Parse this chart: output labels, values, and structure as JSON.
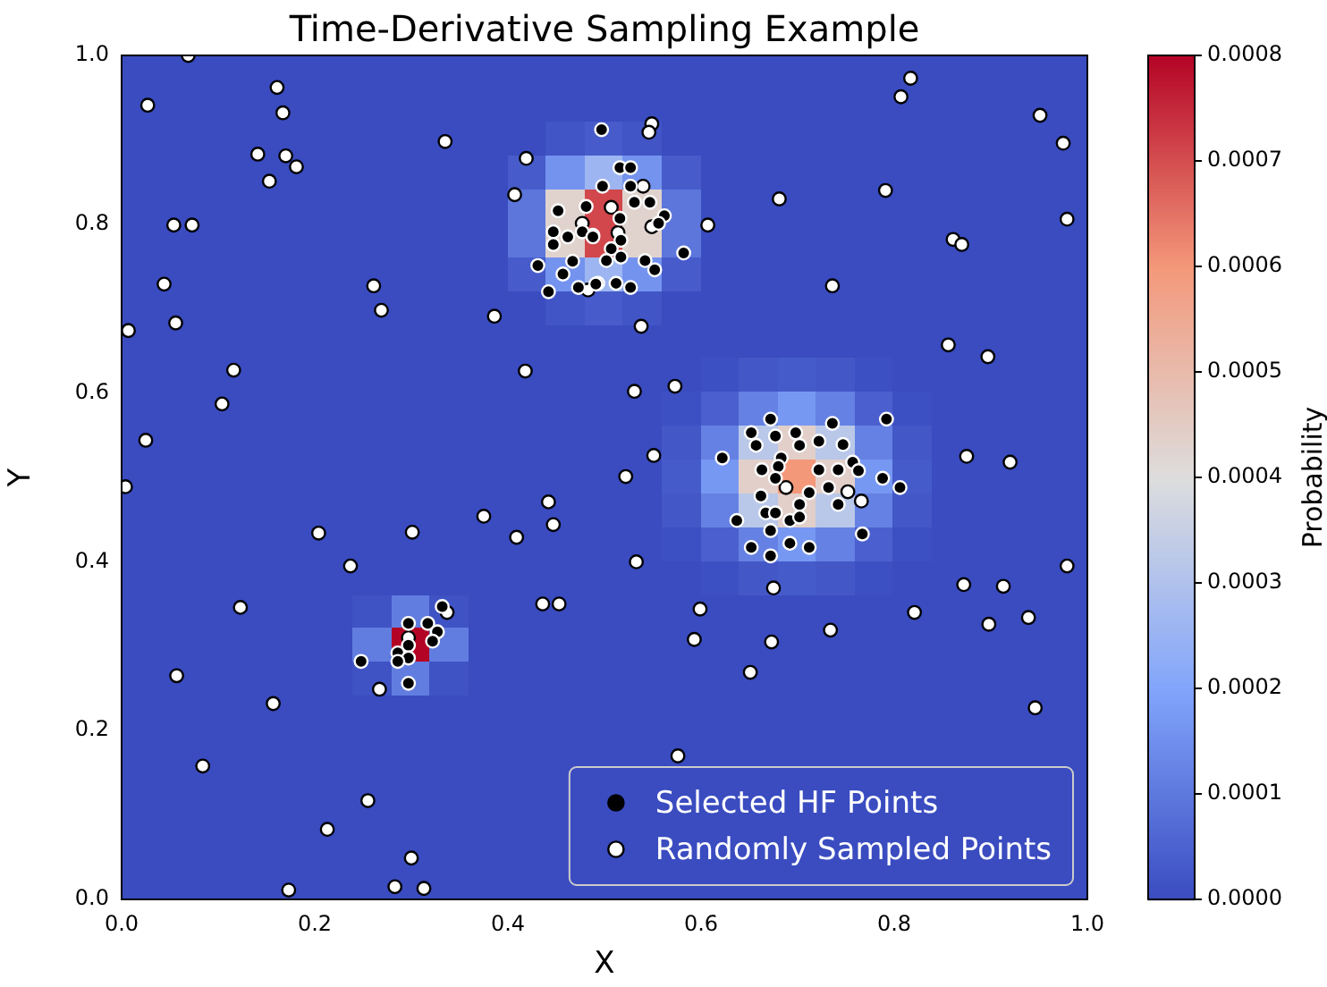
{
  "chart_data": {
    "type": "heatmap",
    "title": "Time-Derivative Sampling Example",
    "xlabel": "X",
    "ylabel": "Y",
    "clabel": "Probability",
    "x": [
      0.02,
      0.06,
      0.1,
      0.14,
      0.18,
      0.22,
      0.26,
      0.3,
      0.34,
      0.38,
      0.42,
      0.46,
      0.5,
      0.54,
      0.58,
      0.62,
      0.66,
      0.7,
      0.74,
      0.78,
      0.82,
      0.86,
      0.9,
      0.94,
      0.98
    ],
    "cells": [
      [
        0,
        0,
        0,
        0,
        0,
        0,
        0,
        0,
        0,
        0,
        0,
        0,
        0,
        0,
        0,
        0,
        0,
        0,
        0,
        0,
        0,
        0,
        0,
        0,
        0
      ],
      [
        0,
        0,
        0,
        0,
        0,
        0,
        0,
        0,
        0,
        0,
        0,
        0,
        0,
        0,
        0,
        0,
        0,
        0,
        0,
        0,
        0,
        0,
        0,
        0,
        0
      ],
      [
        0,
        0,
        0,
        0,
        0,
        0,
        0,
        0,
        0,
        0,
        0,
        2e-05,
        3.5e-05,
        2e-05,
        0,
        0,
        0,
        0,
        0,
        0,
        0,
        0,
        0,
        0,
        0
      ],
      [
        0,
        0,
        0,
        0,
        0,
        0,
        0,
        0,
        0,
        0,
        3.5e-05,
        0.00016,
        0.00026,
        0.00016,
        3.5e-05,
        0,
        0,
        0,
        0,
        0,
        0,
        0,
        0,
        0,
        0
      ],
      [
        0,
        0,
        0,
        0,
        0,
        0,
        0,
        0,
        0,
        0,
        9.5e-05,
        0.00043,
        0.00071,
        0.00043,
        9.5e-05,
        0,
        0,
        0,
        0,
        0,
        0,
        0,
        0,
        0,
        0
      ],
      [
        0,
        0,
        0,
        0,
        0,
        0,
        0,
        0,
        0,
        0,
        9.5e-05,
        0.00043,
        0.00071,
        0.00043,
        9.5e-05,
        0,
        0,
        0,
        0,
        0,
        0,
        0,
        0,
        0,
        0
      ],
      [
        0,
        0,
        0,
        0,
        0,
        0,
        0,
        0,
        0,
        0,
        3.5e-05,
        0.00016,
        0.00026,
        0.00016,
        3.5e-05,
        0,
        0,
        0,
        0,
        0,
        0,
        0,
        0,
        0,
        0
      ],
      [
        0,
        0,
        0,
        0,
        0,
        0,
        0,
        0,
        0,
        0,
        0,
        2e-05,
        3.5e-05,
        2e-05,
        0,
        0,
        0,
        0,
        0,
        0,
        0,
        0,
        0,
        0,
        0
      ],
      [
        0,
        0,
        0,
        0,
        0,
        0,
        0,
        0,
        0,
        0,
        0,
        0,
        0,
        0,
        0,
        0,
        0,
        0,
        0,
        0,
        0,
        0,
        0,
        0,
        0
      ],
      [
        0,
        0,
        0,
        0,
        0,
        0,
        0,
        0,
        0,
        0,
        0,
        0,
        0,
        0,
        0,
        9e-06,
        2.5e-05,
        3.4e-05,
        2.5e-05,
        9e-06,
        0,
        0,
        0,
        0,
        0
      ],
      [
        0,
        0,
        0,
        0,
        0,
        0,
        0,
        0,
        0,
        0,
        0,
        0,
        0,
        0,
        9e-06,
        4.6e-05,
        0.00012,
        0.00017,
        0.00012,
        4.6e-05,
        9e-06,
        0,
        0,
        0,
        0
      ],
      [
        0,
        0,
        0,
        0,
        0,
        0,
        0,
        0,
        0,
        0,
        0,
        0,
        0,
        0,
        2.5e-05,
        0.00012,
        0.00032,
        0.00044,
        0.00032,
        0.00012,
        2.5e-05,
        0,
        0,
        0,
        0
      ],
      [
        0,
        0,
        0,
        0,
        0,
        0,
        0,
        0,
        0,
        0,
        0,
        0,
        0,
        0,
        3.4e-05,
        0.00017,
        0.00044,
        0.0006,
        0.00044,
        0.00017,
        3.4e-05,
        0,
        0,
        0,
        0
      ],
      [
        0,
        0,
        0,
        0,
        0,
        0,
        0,
        0,
        0,
        0,
        0,
        0,
        0,
        0,
        2.5e-05,
        0.00012,
        0.00032,
        0.00044,
        0.00032,
        0.00012,
        2.5e-05,
        0,
        0,
        0,
        0
      ],
      [
        0,
        0,
        0,
        0,
        0,
        0,
        0,
        0,
        0,
        0,
        0,
        0,
        0,
        0,
        9e-06,
        4.6e-05,
        0.00012,
        0.00017,
        0.00012,
        4.6e-05,
        9e-06,
        0,
        0,
        0,
        0
      ],
      [
        0,
        0,
        0,
        0,
        0,
        0,
        0,
        0,
        0,
        0,
        0,
        0,
        0,
        0,
        0,
        9e-06,
        2.5e-05,
        3.4e-05,
        2.5e-05,
        9e-06,
        0,
        0,
        0,
        0,
        0
      ],
      [
        0,
        0,
        0,
        0,
        0,
        0,
        1.5e-05,
        0.00011,
        1.5e-05,
        0,
        0,
        0,
        0,
        0,
        0,
        0,
        0,
        0,
        0,
        0,
        0,
        0,
        0,
        0,
        0
      ],
      [
        0,
        0,
        0,
        0,
        0,
        0,
        0.00011,
        0.0008,
        0.00011,
        0,
        0,
        0,
        0,
        0,
        0,
        0,
        0,
        0,
        0,
        0,
        0,
        0,
        0,
        0,
        0
      ],
      [
        0,
        0,
        0,
        0,
        0,
        0,
        1.5e-05,
        0.00011,
        1.5e-05,
        0,
        0,
        0,
        0,
        0,
        0,
        0,
        0,
        0,
        0,
        0,
        0,
        0,
        0,
        0,
        0
      ],
      [
        0,
        0,
        0,
        0,
        0,
        0,
        0,
        0,
        0,
        0,
        0,
        0,
        0,
        0,
        0,
        0,
        0,
        0,
        0,
        0,
        0,
        0,
        0,
        0,
        0
      ],
      [
        0,
        0,
        0,
        0,
        0,
        0,
        0,
        0,
        0,
        0,
        0,
        0,
        0,
        0,
        0,
        0,
        0,
        0,
        0,
        0,
        0,
        0,
        0,
        0,
        0
      ],
      [
        0,
        0,
        0,
        0,
        0,
        0,
        0,
        0,
        0,
        0,
        0,
        0,
        0,
        0,
        0,
        0,
        0,
        0,
        0,
        0,
        0,
        0,
        0,
        0,
        0
      ],
      [
        0,
        0,
        0,
        0,
        0,
        0,
        0,
        0,
        0,
        0,
        0,
        0,
        0,
        0,
        0,
        0,
        0,
        0,
        0,
        0,
        0,
        0,
        0,
        0,
        0
      ],
      [
        0,
        0,
        0,
        0,
        0,
        0,
        0,
        0,
        0,
        0,
        0,
        0,
        0,
        0,
        0,
        0,
        0,
        0,
        0,
        0,
        0,
        0,
        0,
        0,
        0
      ],
      [
        0,
        0,
        0,
        0,
        0,
        0,
        0,
        0,
        0,
        0,
        0,
        0,
        0,
        0,
        0,
        0,
        0,
        0,
        0,
        0,
        0,
        0,
        0,
        0,
        0
      ]
    ],
    "clim": [
      0,
      0.0008
    ],
    "cticks": [
      {
        "value": 0,
        "label": "0.0000"
      },
      {
        "value": 0.0001,
        "label": "0.0001"
      },
      {
        "value": 0.0002,
        "label": "0.0002"
      },
      {
        "value": 0.0003,
        "label": "0.0003"
      },
      {
        "value": 0.0004,
        "label": "0.0004"
      },
      {
        "value": 0.0005,
        "label": "0.0005"
      },
      {
        "value": 0.0006,
        "label": "0.0006"
      },
      {
        "value": 0.0007,
        "label": "0.0007"
      },
      {
        "value": 0.0008,
        "label": "0.0008"
      }
    ],
    "xlim": [
      0,
      1
    ],
    "ylim": [
      0,
      1
    ],
    "xticks": [
      {
        "value": 0,
        "label": "0.0"
      },
      {
        "value": 0.2,
        "label": "0.2"
      },
      {
        "value": 0.4,
        "label": "0.4"
      },
      {
        "value": 0.6,
        "label": "0.6"
      },
      {
        "value": 0.8,
        "label": "0.8"
      },
      {
        "value": 1,
        "label": "1.0"
      }
    ],
    "yticks": [
      {
        "value": 0,
        "label": "0.0"
      },
      {
        "value": 0.2,
        "label": "0.2"
      },
      {
        "value": 0.4,
        "label": "0.4"
      },
      {
        "value": 0.6,
        "label": "0.6"
      },
      {
        "value": 0.8,
        "label": "0.8"
      },
      {
        "value": 1,
        "label": "1.0"
      }
    ],
    "grid": false,
    "legend": "bottom right",
    "marker": "circle",
    "series": [
      {
        "name": "Selected HF Points",
        "type": "scatter",
        "color": "#000000",
        "x": [
          0.672,
          0.736,
          0.792,
          0.652,
          0.677,
          0.698,
          0.722,
          0.747,
          0.657,
          0.702,
          0.622,
          0.683,
          0.757,
          0.663,
          0.68,
          0.722,
          0.742,
          0.763,
          0.677,
          0.732,
          0.712,
          0.788,
          0.806,
          0.662,
          0.702,
          0.742,
          0.637,
          0.667,
          0.677,
          0.692,
          0.702,
          0.672,
          0.767,
          0.652,
          0.672,
          0.692,
          0.712,
          0.297,
          0.317,
          0.327,
          0.322,
          0.297,
          0.286,
          0.297,
          0.286,
          0.248,
          0.297,
          0.332,
          0.516,
          0.527,
          0.498,
          0.527,
          0.531,
          0.547,
          0.562,
          0.556,
          0.516,
          0.517,
          0.507,
          0.517,
          0.502,
          0.542,
          0.552,
          0.582,
          0.493,
          0.512,
          0.527,
          0.488,
          0.497,
          0.481,
          0.452,
          0.447,
          0.462,
          0.477,
          0.488,
          0.447,
          0.467,
          0.431,
          0.457,
          0.442,
          0.473,
          0.491
        ],
        "values": [
          0.569,
          0.564,
          0.569,
          0.553,
          0.549,
          0.553,
          0.543,
          0.539,
          0.538,
          0.538,
          0.523,
          0.523,
          0.518,
          0.509,
          0.513,
          0.509,
          0.509,
          0.508,
          0.499,
          0.488,
          0.482,
          0.499,
          0.488,
          0.478,
          0.468,
          0.468,
          0.449,
          0.458,
          0.458,
          0.449,
          0.453,
          0.437,
          0.433,
          0.417,
          0.407,
          0.422,
          0.417,
          0.327,
          0.327,
          0.317,
          0.306,
          0.301,
          0.292,
          0.286,
          0.282,
          0.282,
          0.256,
          0.347,
          0.867,
          0.867,
          0.845,
          0.845,
          0.826,
          0.826,
          0.81,
          0.801,
          0.807,
          0.781,
          0.771,
          0.761,
          0.757,
          0.757,
          0.746,
          0.766,
          0.73,
          0.73,
          0.725,
          0.787,
          0.912,
          0.821,
          0.816,
          0.791,
          0.785,
          0.791,
          0.785,
          0.776,
          0.756,
          0.751,
          0.741,
          0.72,
          0.725,
          0.729
        ]
      },
      {
        "name": "Randomly Sampled Points",
        "type": "scatter",
        "color": "#ffffff",
        "x": [
          0.688,
          0.752,
          0.766,
          0.573,
          0.337,
          0.267,
          0.297,
          0.004,
          0.204,
          0.301,
          0.375,
          0.442,
          0.447,
          0.409,
          0.237,
          0.123,
          0.436,
          0.453,
          0.057,
          0.157,
          0.084,
          0.255,
          0.213,
          0.3,
          0.173,
          0.283,
          0.313,
          0.522,
          0.533,
          0.599,
          0.593,
          0.673,
          0.675,
          0.734,
          0.651,
          0.576,
          0.821,
          0.872,
          0.913,
          0.898,
          0.939,
          0.979,
          0.946,
          0.069,
          0.027,
          0.161,
          0.167,
          0.141,
          0.17,
          0.181,
          0.153,
          0.335,
          0.419,
          0.407,
          0.054,
          0.073,
          0.044,
          0.056,
          0.007,
          0.261,
          0.269,
          0.386,
          0.116,
          0.418,
          0.104,
          0.025,
          0.817,
          0.807,
          0.951,
          0.975,
          0.979,
          0.681,
          0.791,
          0.607,
          0.861,
          0.87,
          0.736,
          0.856,
          0.897,
          0.538,
          0.531,
          0.551,
          0.875,
          0.92,
          0.549,
          0.546,
          0.54,
          0.549,
          0.507,
          0.514,
          0.483,
          0.477
        ],
        "values": [
          0.488,
          0.483,
          0.472,
          0.608,
          0.34,
          0.249,
          0.31,
          0.489,
          0.434,
          0.435,
          0.454,
          0.471,
          0.444,
          0.429,
          0.395,
          0.346,
          0.35,
          0.35,
          0.265,
          0.232,
          0.158,
          0.117,
          0.083,
          0.049,
          0.011,
          0.015,
          0.013,
          0.501,
          0.4,
          0.344,
          0.308,
          0.305,
          0.369,
          0.319,
          0.269,
          0.17,
          0.34,
          0.373,
          0.371,
          0.326,
          0.334,
          0.395,
          0.227,
          1.0,
          0.941,
          0.962,
          0.932,
          0.883,
          0.881,
          0.868,
          0.851,
          0.898,
          0.878,
          0.835,
          0.799,
          0.799,
          0.729,
          0.683,
          0.674,
          0.727,
          0.698,
          0.691,
          0.627,
          0.626,
          0.587,
          0.544,
          0.973,
          0.951,
          0.929,
          0.896,
          0.806,
          0.83,
          0.84,
          0.799,
          0.782,
          0.776,
          0.727,
          0.657,
          0.643,
          0.679,
          0.602,
          0.526,
          0.525,
          0.518,
          0.919,
          0.909,
          0.845,
          0.797,
          0.82,
          0.79,
          0.722,
          0.801
        ]
      }
    ]
  }
}
